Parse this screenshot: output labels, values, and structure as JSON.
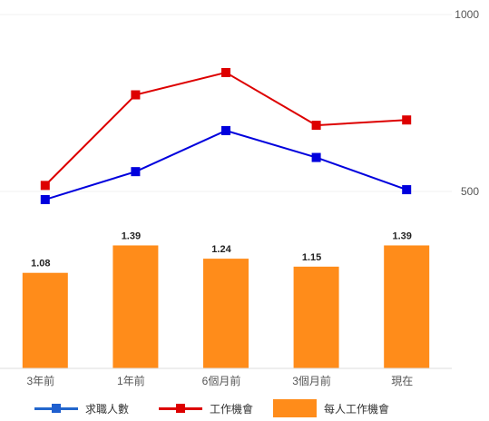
{
  "chart_data": {
    "type": "bar+line",
    "categories": [
      "3年前",
      "1年前",
      "6個月前",
      "3個月前",
      "現在"
    ],
    "y_right": {
      "ticks": [
        500,
        1000
      ],
      "range": [
        0,
        1000
      ]
    },
    "series": [
      {
        "name": "求職人數",
        "type": "line",
        "color": "#0000dd",
        "values": [
          477,
          556,
          672,
          596,
          505
        ]
      },
      {
        "name": "工作機會",
        "type": "line",
        "color": "#dd0000",
        "values": [
          517,
          773,
          836,
          687,
          702
        ]
      },
      {
        "name": "每人工作機會",
        "type": "bar",
        "color": "#ff8c1a",
        "values": [
          1.08,
          1.39,
          1.24,
          1.15,
          1.39
        ],
        "labels": [
          "1.08",
          "1.39",
          "1.24",
          "1.15",
          "1.39"
        ],
        "bar_range": [
          0,
          4.0
        ]
      }
    ],
    "grid": true,
    "legend_position": "bottom"
  },
  "legend": [
    {
      "label": "求職人數",
      "kind": "line",
      "color": "#2266cc",
      "marker_color": "#1f5fcf"
    },
    {
      "label": "工作機會",
      "kind": "line",
      "color": "#dd0000",
      "marker_color": "#dd0000"
    },
    {
      "label": "每人工作機會",
      "kind": "bar",
      "color": "#ff8c1a"
    }
  ]
}
